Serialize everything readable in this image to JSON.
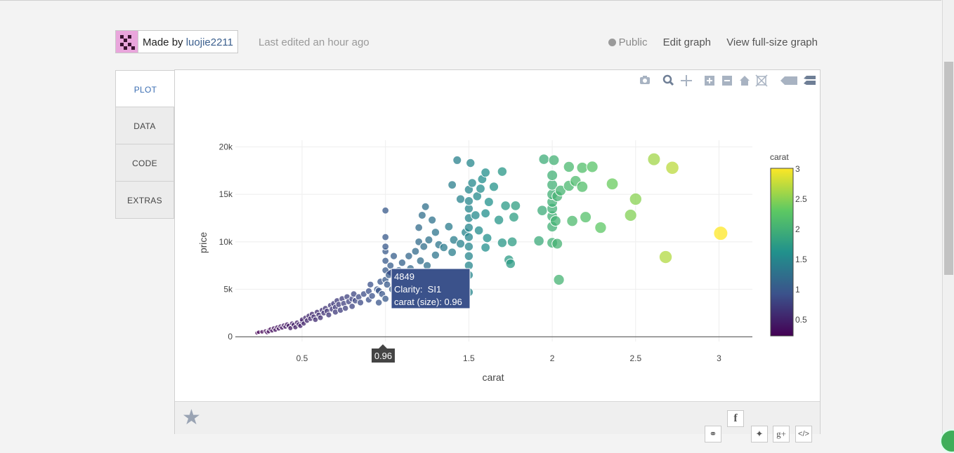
{
  "header": {
    "made_by_prefix": "Made by",
    "user": "luojie2211",
    "last_edited": "Last edited an hour ago",
    "public_label": "Public",
    "edit_label": "Edit graph",
    "view_label": "View full-size graph"
  },
  "tabs": [
    {
      "label": "PLOT"
    },
    {
      "label": "DATA"
    },
    {
      "label": "CODE"
    },
    {
      "label": "EXTRAS"
    }
  ],
  "tooltip": {
    "line1": "4849",
    "line2": "Clarity:  SI1",
    "line3": "carat (size): 0.96",
    "axis_label": "0.96"
  },
  "colors": {
    "hover_box": "#3b528b",
    "accent_tab": "#3d6fb3"
  },
  "icons": {
    "modebar": [
      "camera-icon",
      "zoom-icon",
      "pan-icon",
      "zoom-in-icon",
      "zoom-out-icon",
      "autoscale-home-icon",
      "reset-axes-icon",
      "hover-closest-icon",
      "hover-compare-icon"
    ],
    "footer": [
      "star-icon",
      "facebook-icon",
      "link-icon",
      "twitter-icon",
      "google-plus-icon",
      "embed-code-icon"
    ]
  },
  "chart_data": {
    "type": "scatter",
    "xlabel": "carat",
    "ylabel": "price",
    "xlim": [
      0.1,
      3.2
    ],
    "ylim": [
      -500,
      20700
    ],
    "xticks": [
      0.5,
      1,
      1.5,
      2,
      2.5,
      3
    ],
    "xtick_labels": [
      "0.5",
      "1",
      "1.5",
      "2",
      "2.5",
      "3"
    ],
    "yticks": [
      0,
      5000,
      10000,
      15000,
      20000
    ],
    "ytick_labels": [
      "0",
      "5k",
      "10k",
      "15k",
      "20k"
    ],
    "grid": true,
    "colorscale": "viridis",
    "colorbar": {
      "title": "carat",
      "range": [
        0.23,
        3.01
      ],
      "ticks": [
        0.5,
        1,
        1.5,
        2,
        2.5,
        3
      ],
      "tick_labels": [
        "0.5",
        "1",
        "1.5",
        "2",
        "2.5",
        "3"
      ]
    },
    "marker_size_by": "carat",
    "marker_color_by": "carat",
    "points": [
      [
        0.23,
        400
      ],
      [
        0.24,
        480
      ],
      [
        0.26,
        520
      ],
      [
        0.28,
        600
      ],
      [
        0.29,
        450
      ],
      [
        0.3,
        700
      ],
      [
        0.3,
        550
      ],
      [
        0.31,
        800
      ],
      [
        0.32,
        640
      ],
      [
        0.33,
        900
      ],
      [
        0.34,
        720
      ],
      [
        0.35,
        1000
      ],
      [
        0.36,
        850
      ],
      [
        0.37,
        1100
      ],
      [
        0.38,
        950
      ],
      [
        0.39,
        1200
      ],
      [
        0.4,
        1050
      ],
      [
        0.41,
        1300
      ],
      [
        0.42,
        1150
      ],
      [
        0.43,
        900
      ],
      [
        0.44,
        1400
      ],
      [
        0.45,
        1250
      ],
      [
        0.46,
        1000
      ],
      [
        0.47,
        1500
      ],
      [
        0.48,
        1300
      ],
      [
        0.49,
        1150
      ],
      [
        0.5,
        1600
      ],
      [
        0.5,
        1800
      ],
      [
        0.51,
        1400
      ],
      [
        0.52,
        2000
      ],
      [
        0.53,
        1700
      ],
      [
        0.54,
        2200
      ],
      [
        0.55,
        1900
      ],
      [
        0.56,
        2400
      ],
      [
        0.57,
        2100
      ],
      [
        0.58,
        1800
      ],
      [
        0.59,
        2600
      ],
      [
        0.6,
        2300
      ],
      [
        0.61,
        2000
      ],
      [
        0.62,
        2800
      ],
      [
        0.63,
        2500
      ],
      [
        0.64,
        3000
      ],
      [
        0.65,
        2700
      ],
      [
        0.66,
        2300
      ],
      [
        0.67,
        3300
      ],
      [
        0.68,
        2900
      ],
      [
        0.69,
        3500
      ],
      [
        0.7,
        3100
      ],
      [
        0.7,
        2600
      ],
      [
        0.71,
        3800
      ],
      [
        0.72,
        3400
      ],
      [
        0.73,
        2800
      ],
      [
        0.74,
        4000
      ],
      [
        0.75,
        3500
      ],
      [
        0.76,
        3000
      ],
      [
        0.77,
        4200
      ],
      [
        0.78,
        3700
      ],
      [
        0.8,
        4000
      ],
      [
        0.8,
        3200
      ],
      [
        0.81,
        4500
      ],
      [
        0.82,
        3800
      ],
      [
        0.84,
        4200
      ],
      [
        0.85,
        3600
      ],
      [
        0.87,
        4500
      ],
      [
        0.9,
        4800
      ],
      [
        0.9,
        3900
      ],
      [
        0.91,
        5500
      ],
      [
        0.92,
        4300
      ],
      [
        0.95,
        5000
      ],
      [
        0.96,
        4849
      ],
      [
        0.96,
        3600
      ],
      [
        0.97,
        5800
      ],
      [
        0.98,
        4500
      ],
      [
        1.0,
        6000
      ],
      [
        1.0,
        7000
      ],
      [
        1.0,
        8000
      ],
      [
        1.0,
        9000
      ],
      [
        1.0,
        9500
      ],
      [
        1.0,
        10500
      ],
      [
        1.0,
        13300
      ],
      [
        1.0,
        4000
      ],
      [
        1.01,
        5500
      ],
      [
        1.02,
        6500
      ],
      [
        1.03,
        7500
      ],
      [
        1.04,
        5000
      ],
      [
        1.05,
        8500
      ],
      [
        1.06,
        6000
      ],
      [
        1.08,
        7000
      ],
      [
        1.1,
        7800
      ],
      [
        1.1,
        5600
      ],
      [
        1.12,
        6800
      ],
      [
        1.14,
        8500
      ],
      [
        1.15,
        7200
      ],
      [
        1.18,
        9000
      ],
      [
        1.2,
        6500
      ],
      [
        1.2,
        10000
      ],
      [
        1.2,
        11500
      ],
      [
        1.21,
        8000
      ],
      [
        1.22,
        12800
      ],
      [
        1.23,
        9500
      ],
      [
        1.24,
        13700
      ],
      [
        1.25,
        7500
      ],
      [
        1.26,
        10200
      ],
      [
        1.28,
        12300
      ],
      [
        1.3,
        8600
      ],
      [
        1.3,
        11000
      ],
      [
        1.32,
        9700
      ],
      [
        1.35,
        9400
      ],
      [
        1.38,
        11600
      ],
      [
        1.4,
        8900
      ],
      [
        1.4,
        16000
      ],
      [
        1.41,
        10200
      ],
      [
        1.43,
        18600
      ],
      [
        1.45,
        9800
      ],
      [
        1.45,
        14500
      ],
      [
        1.48,
        11000
      ],
      [
        1.5,
        4700
      ],
      [
        1.5,
        6500
      ],
      [
        1.5,
        7500
      ],
      [
        1.5,
        8500
      ],
      [
        1.5,
        9500
      ],
      [
        1.5,
        10500
      ],
      [
        1.5,
        11500
      ],
      [
        1.5,
        12500
      ],
      [
        1.5,
        13500
      ],
      [
        1.5,
        14300
      ],
      [
        1.5,
        15500
      ],
      [
        1.51,
        18300
      ],
      [
        1.52,
        16200
      ],
      [
        1.54,
        12800
      ],
      [
        1.55,
        14800
      ],
      [
        1.56,
        11200
      ],
      [
        1.57,
        15600
      ],
      [
        1.58,
        16600
      ],
      [
        1.6,
        9400
      ],
      [
        1.6,
        13000
      ],
      [
        1.6,
        17300
      ],
      [
        1.61,
        10400
      ],
      [
        1.62,
        14200
      ],
      [
        1.65,
        15800
      ],
      [
        1.68,
        12300
      ],
      [
        1.7,
        9900
      ],
      [
        1.7,
        17400
      ],
      [
        1.72,
        13800
      ],
      [
        1.74,
        8100
      ],
      [
        1.75,
        7700
      ],
      [
        1.76,
        10000
      ],
      [
        1.77,
        12600
      ],
      [
        1.78,
        13800
      ],
      [
        1.92,
        10100
      ],
      [
        1.94,
        13300
      ],
      [
        1.95,
        18700
      ],
      [
        2.0,
        9900
      ],
      [
        2.0,
        11600
      ],
      [
        2.0,
        12700
      ],
      [
        2.0,
        13500
      ],
      [
        2.0,
        14200
      ],
      [
        2.0,
        15000
      ],
      [
        2.0,
        16000
      ],
      [
        2.0,
        17000
      ],
      [
        2.01,
        18600
      ],
      [
        2.02,
        12200
      ],
      [
        2.03,
        14800
      ],
      [
        2.03,
        9800
      ],
      [
        2.04,
        6000
      ],
      [
        2.05,
        15400
      ],
      [
        2.1,
        17900
      ],
      [
        2.1,
        15900
      ],
      [
        2.12,
        12200
      ],
      [
        2.14,
        16400
      ],
      [
        2.18,
        15800
      ],
      [
        2.18,
        17800
      ],
      [
        2.2,
        12600
      ],
      [
        2.24,
        17900
      ],
      [
        2.29,
        11500
      ],
      [
        2.36,
        16100
      ],
      [
        2.47,
        12800
      ],
      [
        2.5,
        14500
      ],
      [
        2.61,
        18700
      ],
      [
        2.68,
        8400
      ],
      [
        2.72,
        17800
      ],
      [
        3.01,
        10900
      ]
    ]
  }
}
